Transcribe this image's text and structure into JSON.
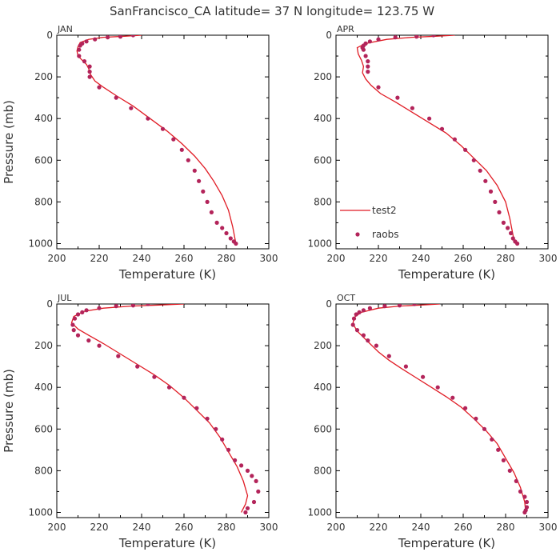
{
  "title": "SanFrancisco_CA  latitude= 37 N longitude= 123.75 W",
  "colors": {
    "model": "#e01b24",
    "obs": "#b3245a"
  },
  "legend": {
    "model_label": "test2",
    "obs_label": "raobs"
  },
  "chart_data": [
    {
      "type": "line",
      "label": "JAN",
      "xlabel": "Temperature (K)",
      "ylabel": "Pressure (mb)",
      "xlim": [
        200,
        300
      ],
      "ylim": [
        1025,
        0
      ],
      "xticks": [
        "200",
        "220",
        "240",
        "260",
        "280",
        "300"
      ],
      "yticks": [
        "0",
        "200",
        "400",
        "600",
        "800",
        "1000"
      ],
      "series": [
        {
          "name": "test2",
          "style": "line",
          "x": [
            240,
            232,
            222,
            215,
            211,
            210,
            209.5,
            210,
            212,
            214,
            215,
            216,
            218,
            222,
            228,
            236,
            244,
            252,
            259,
            265,
            270,
            274,
            278,
            281,
            283,
            284.5
          ],
          "y": [
            0,
            5,
            10,
            20,
            35,
            55,
            75,
            100,
            120,
            140,
            160,
            190,
            220,
            250,
            290,
            340,
            400,
            460,
            520,
            580,
            640,
            700,
            770,
            840,
            920,
            1000
          ]
        },
        {
          "name": "raobs",
          "style": "points",
          "x": [
            236,
            230,
            224,
            218,
            214,
            212,
            211,
            210.5,
            210.5,
            213,
            215.5,
            215.5,
            215.5,
            220,
            228,
            235,
            243,
            250,
            255,
            259,
            262,
            265,
            267,
            269,
            271,
            273,
            275.5,
            278,
            280,
            282,
            283.5,
            284.5
          ],
          "y": [
            0,
            7,
            10,
            20,
            30,
            40,
            50,
            70,
            100,
            125,
            150,
            175,
            200,
            250,
            300,
            350,
            400,
            450,
            500,
            550,
            600,
            650,
            700,
            750,
            800,
            850,
            900,
            925,
            950,
            975,
            990,
            1000
          ]
        }
      ],
      "legend": false
    },
    {
      "type": "line",
      "label": "APR",
      "xlabel": "Temperature (K)",
      "ylabel": "",
      "xlim": [
        200,
        300
      ],
      "ylim": [
        1025,
        0
      ],
      "xticks": [
        "200",
        "220",
        "240",
        "260",
        "280",
        "300"
      ],
      "yticks": [
        "0",
        "200",
        "400",
        "600",
        "800",
        "1000"
      ],
      "series": [
        {
          "name": "test2",
          "style": "line",
          "x": [
            256,
            247,
            236,
            224,
            214,
            210,
            210.5,
            212,
            213,
            212.5,
            214,
            216.5,
            221,
            228,
            236,
            244,
            252,
            259,
            265,
            271,
            276,
            280,
            282,
            283.5,
            284.5
          ],
          "y": [
            0,
            5,
            10,
            20,
            40,
            60,
            90,
            120,
            150,
            180,
            210,
            240,
            280,
            320,
            370,
            420,
            470,
            530,
            590,
            650,
            720,
            800,
            880,
            960,
            1000
          ]
        },
        {
          "name": "raobs",
          "style": "points",
          "x": [
            246,
            238,
            228,
            220,
            216,
            214,
            213,
            212.5,
            213,
            214,
            215,
            215,
            215,
            220,
            229,
            236,
            244,
            250,
            256,
            261,
            265,
            268,
            270.5,
            273,
            275,
            277,
            279,
            281,
            282.5,
            283.5,
            284.5,
            285.5
          ],
          "y": [
            0,
            7,
            10,
            20,
            30,
            40,
            50,
            60,
            70,
            100,
            125,
            150,
            175,
            250,
            300,
            350,
            400,
            450,
            500,
            550,
            600,
            650,
            700,
            750,
            800,
            850,
            900,
            925,
            950,
            975,
            990,
            1000
          ]
        }
      ],
      "legend": true
    },
    {
      "type": "line",
      "label": "JUL",
      "xlabel": "Temperature (K)",
      "ylabel": "Pressure (mb)",
      "xlim": [
        200,
        300
      ],
      "ylim": [
        1025,
        0
      ],
      "xticks": [
        "200",
        "220",
        "240",
        "260",
        "280",
        "300"
      ],
      "yticks": [
        "0",
        "200",
        "400",
        "600",
        "800",
        "1000"
      ],
      "series": [
        {
          "name": "test2",
          "style": "line",
          "x": [
            260,
            248,
            235,
            222,
            213,
            208,
            207,
            210,
            215,
            222,
            230,
            238,
            246,
            253,
            260,
            266,
            272,
            277,
            281,
            285,
            288,
            290,
            289,
            287.5,
            287
          ],
          "y": [
            0,
            5,
            10,
            20,
            35,
            60,
            90,
            120,
            150,
            190,
            240,
            290,
            340,
            390,
            450,
            510,
            570,
            640,
            710,
            780,
            850,
            920,
            960,
            990,
            1000
          ]
        },
        {
          "name": "raobs",
          "style": "points",
          "x": [
            243,
            236,
            228,
            220,
            214,
            212,
            210,
            208.5,
            207.5,
            208,
            210,
            215,
            220,
            229,
            238,
            246,
            253,
            260,
            266,
            271,
            275,
            278,
            281,
            284,
            287,
            290,
            292,
            294,
            295,
            293,
            290,
            289
          ],
          "y": [
            0,
            7,
            10,
            20,
            30,
            40,
            50,
            70,
            100,
            125,
            150,
            175,
            200,
            250,
            300,
            350,
            400,
            450,
            500,
            550,
            600,
            650,
            700,
            750,
            775,
            800,
            825,
            850,
            900,
            950,
            980,
            1000
          ]
        }
      ],
      "legend": false
    },
    {
      "type": "line",
      "label": "OCT",
      "xlabel": "Temperature (K)",
      "ylabel": "",
      "xlim": [
        200,
        300
      ],
      "ylim": [
        1025,
        0
      ],
      "xticks": [
        "200",
        "220",
        "240",
        "260",
        "280",
        "300"
      ],
      "yticks": [
        "0",
        "200",
        "400",
        "600",
        "800",
        "1000"
      ],
      "series": [
        {
          "name": "test2",
          "style": "line",
          "x": [
            249,
            240,
            230,
            220,
            212,
            208.5,
            208,
            210,
            213,
            216,
            220,
            225,
            231,
            238,
            245,
            252,
            259,
            265,
            271,
            276,
            280,
            284,
            287,
            289,
            289.5
          ],
          "y": [
            0,
            5,
            10,
            20,
            40,
            65,
            95,
            130,
            160,
            190,
            230,
            270,
            310,
            355,
            400,
            445,
            495,
            550,
            610,
            670,
            740,
            810,
            880,
            950,
            1000
          ]
        },
        {
          "name": "raobs",
          "style": "points",
          "x": [
            237,
            230,
            223,
            216,
            213,
            211,
            209.5,
            208.5,
            208,
            210,
            213,
            215,
            219,
            225,
            233,
            241,
            248,
            255,
            261,
            266,
            270,
            273.5,
            276.5,
            279,
            282,
            285,
            287,
            289,
            290,
            290,
            289.5,
            289
          ],
          "y": [
            0,
            7,
            10,
            20,
            30,
            40,
            50,
            70,
            100,
            125,
            150,
            175,
            200,
            250,
            300,
            350,
            400,
            450,
            500,
            550,
            600,
            650,
            700,
            750,
            800,
            850,
            900,
            925,
            950,
            975,
            990,
            1000
          ]
        }
      ],
      "legend": false
    }
  ]
}
